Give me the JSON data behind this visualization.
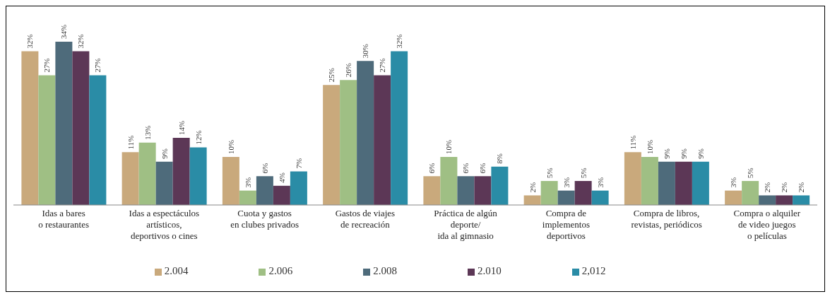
{
  "chart_data": {
    "type": "bar",
    "categories": [
      "Idas a bares\no restaurantes",
      "Idas a espectáculos\nartísticos,\ndeportivos o cines",
      "Cuota y gastos\nen clubes privados",
      "Gastos de viajes\nde recreación",
      "Práctica de algún\ndeporte/\nida al gimnasio",
      "Compra de\nimplementos\ndeportivos",
      "Compra de libros,\nrevistas, periódicos",
      "Compra o alquiler\nde video juegos\no películas"
    ],
    "series": [
      {
        "name": "2.004",
        "color": "#c9a97c",
        "values": [
          32,
          11,
          10,
          25,
          6,
          2,
          11,
          3
        ],
        "value_labels": [
          "32%",
          "11%",
          "10%",
          "25%",
          "6%",
          "2%",
          "11%",
          "3%"
        ]
      },
      {
        "name": "2.006",
        "color": "#9fbf84",
        "values": [
          27,
          13,
          3,
          26,
          10,
          5,
          10,
          5
        ],
        "value_labels": [
          "27%",
          "13%",
          "3%",
          "26%",
          "10%",
          "5%",
          "10%",
          "5%"
        ]
      },
      {
        "name": "2.008",
        "color": "#4e6b7b",
        "values": [
          34,
          9,
          6,
          30,
          6,
          3,
          9,
          2
        ],
        "value_labels": [
          "34%",
          "9%",
          "6%",
          "30%",
          "6%",
          "3%",
          "9%",
          "2%"
        ]
      },
      {
        "name": "2.010",
        "color": "#5c3756",
        "values": [
          32,
          14,
          4,
          27,
          6,
          5,
          9,
          2
        ],
        "value_labels": [
          "32%",
          "14%",
          "4%",
          "27%",
          "6%",
          "5%",
          "9%",
          "2%"
        ]
      },
      {
        "name": "2,012",
        "color": "#2a8ca6",
        "values": [
          27,
          12,
          7,
          32,
          8,
          3,
          9,
          2
        ],
        "value_labels": [
          "27%",
          "12%",
          "7%",
          "32%",
          "8%",
          "3%",
          "9%",
          "2%"
        ]
      }
    ],
    "legend": "bottom",
    "grid": false
  }
}
